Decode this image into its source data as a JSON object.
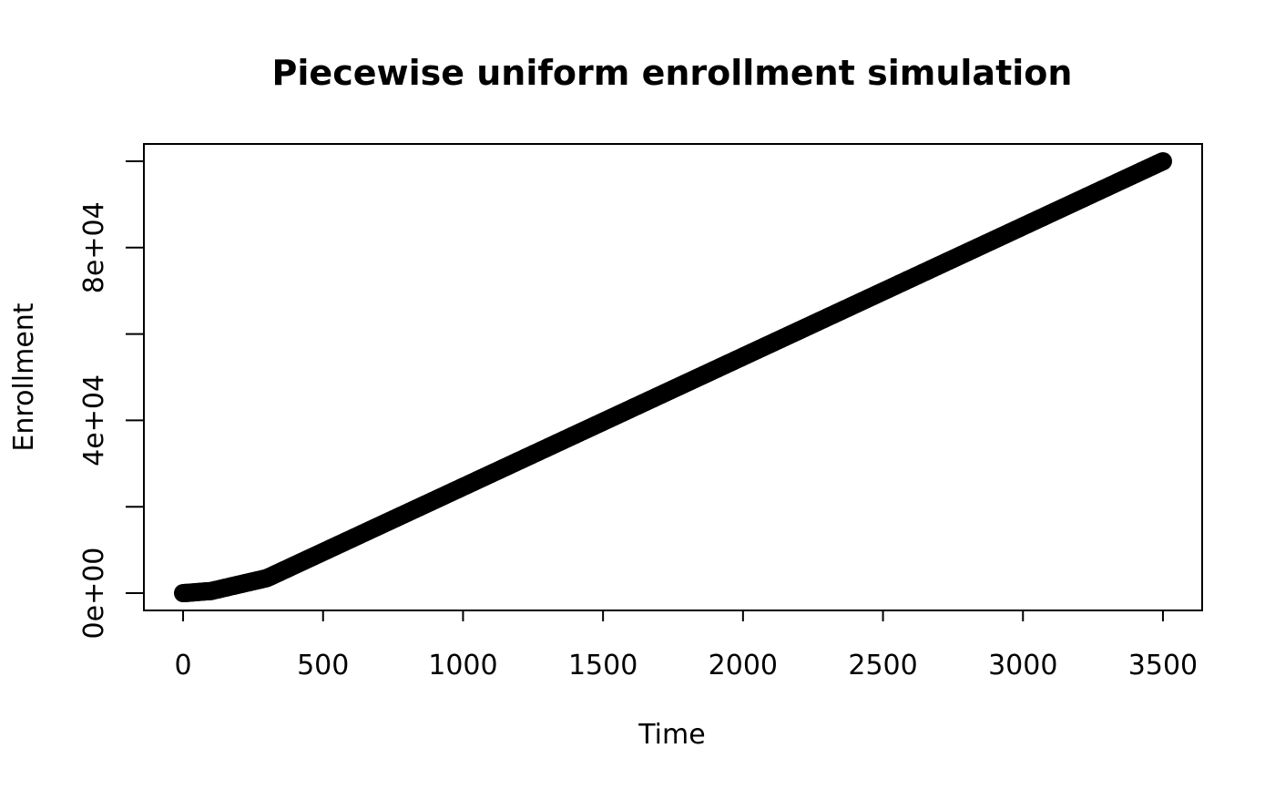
{
  "chart_data": {
    "type": "scatter",
    "title": "Piecewise uniform enrollment simulation",
    "xlabel": "Time",
    "ylabel": "Enrollment",
    "xlim": [
      -140,
      3640
    ],
    "ylim": [
      -4000,
      104000
    ],
    "x_ticks": [
      0,
      500,
      1000,
      1500,
      2000,
      2500,
      3000,
      3500
    ],
    "x_tick_labels": [
      "0",
      "500",
      "1000",
      "1500",
      "2000",
      "2500",
      "3000",
      "3500"
    ],
    "y_ticks": [
      0,
      20000,
      40000,
      60000,
      80000,
      100000
    ],
    "y_tick_labels": [
      "0e+00",
      "",
      "4e+04",
      "",
      "8e+04",
      ""
    ],
    "grid": false,
    "legend": "none",
    "point_color": "#000000",
    "breakpoints": [
      {
        "time": 0,
        "enrollment": 0
      },
      {
        "time": 100,
        "enrollment": 500
      },
      {
        "time": 300,
        "enrollment": 3500
      },
      {
        "time": 3500,
        "enrollment": 100000
      }
    ]
  }
}
